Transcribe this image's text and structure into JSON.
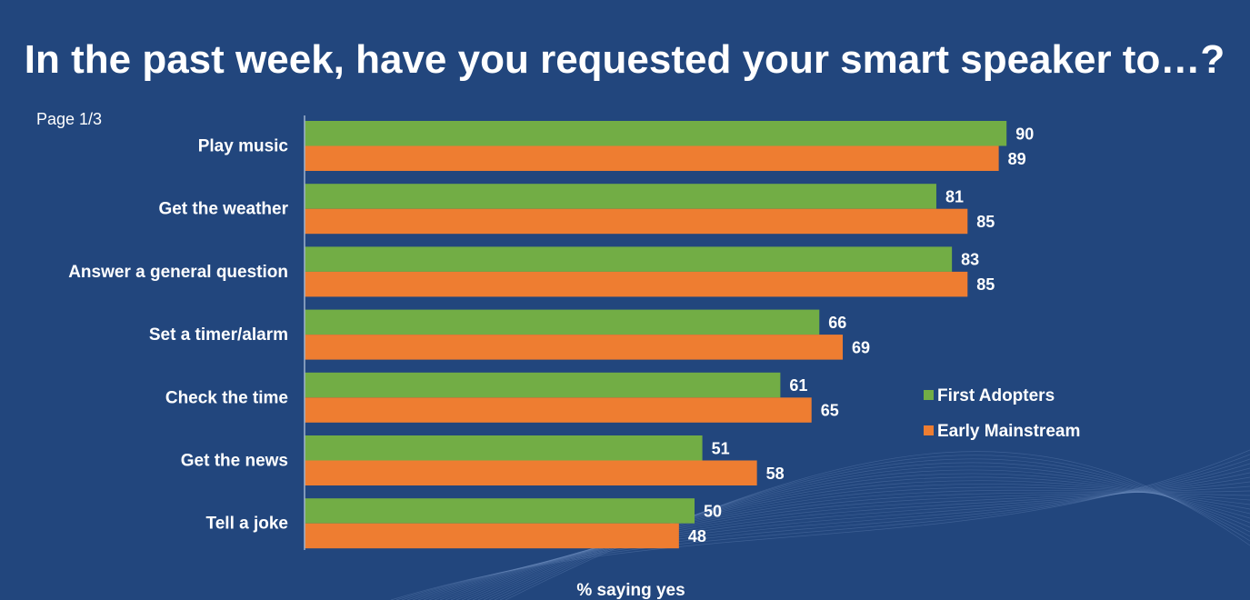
{
  "page_indicator": "Page 1/3",
  "colors": {
    "background": "#22467d",
    "first_adopters": "#72ad45",
    "early_mainstream": "#ee7d31",
    "axis": "#9fb3cf",
    "text": "#ffffff"
  },
  "chart_data": {
    "type": "bar",
    "orientation": "horizontal",
    "title": "In the past week, have you requested your smart speaker to…?",
    "xlabel": "% saying yes",
    "ylabel": "",
    "xlim": [
      0,
      100
    ],
    "grid": false,
    "legend_position": "right",
    "categories": [
      "Play music",
      "Get the weather",
      "Answer a general question",
      "Set a timer/alarm",
      "Check the time",
      "Get the news",
      "Tell a joke"
    ],
    "series": [
      {
        "name": "First Adopters",
        "color": "#72ad45",
        "values": [
          90,
          81,
          83,
          66,
          61,
          51,
          50
        ]
      },
      {
        "name": "Early Mainstream",
        "color": "#ee7d31",
        "values": [
          89,
          85,
          85,
          69,
          65,
          58,
          48
        ]
      }
    ]
  }
}
